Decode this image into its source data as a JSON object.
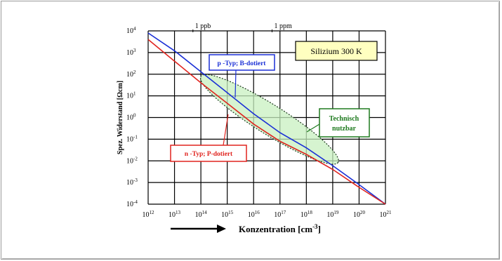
{
  "chart_data": {
    "type": "line",
    "xlabel": "Konzentration [cm",
    "xlabel_sup": "-3",
    "xlabel_tail": "]",
    "ylabel": "Spez. Widerstand [Ωcm]",
    "x_scale": "log",
    "y_scale": "log",
    "xlim": [
      1000000000000.0,
      1e+21
    ],
    "ylim": [
      0.0001,
      10000.0
    ],
    "grid": true,
    "x_ticks": [
      {
        "value": 1000000000000.0,
        "base": "10",
        "exp": "12"
      },
      {
        "value": 10000000000000.0,
        "base": "10",
        "exp": "13"
      },
      {
        "value": 100000000000000.0,
        "base": "10",
        "exp": "14"
      },
      {
        "value": 1000000000000000.0,
        "base": "10",
        "exp": "15"
      },
      {
        "value": 1e+16,
        "base": "10",
        "exp": "16"
      },
      {
        "value": 1e+17,
        "base": "10",
        "exp": "17"
      },
      {
        "value": 1e+18,
        "base": "10",
        "exp": "18"
      },
      {
        "value": 1e+19,
        "base": "10",
        "exp": "19"
      },
      {
        "value": 1e+20,
        "base": "10",
        "exp": "20"
      },
      {
        "value": 1e+21,
        "base": "10",
        "exp": "21"
      }
    ],
    "y_ticks": [
      {
        "value": 10000.0,
        "base": "10",
        "exp": "4"
      },
      {
        "value": 1000.0,
        "base": "10",
        "exp": "3"
      },
      {
        "value": 100.0,
        "base": "10",
        "exp": "2"
      },
      {
        "value": 10.0,
        "base": "10",
        "exp": "1"
      },
      {
        "value": 1.0,
        "base": "10",
        "exp": "0"
      },
      {
        "value": 0.1,
        "base": "10",
        "exp": "-1"
      },
      {
        "value": 0.01,
        "base": "10",
        "exp": "-2"
      },
      {
        "value": 0.001,
        "base": "10",
        "exp": "-3"
      },
      {
        "value": 0.0001,
        "base": "10",
        "exp": "-4"
      }
    ],
    "top_markers": [
      {
        "label": "1 ppb",
        "x": 50000000000000.0
      },
      {
        "label": "1 ppm",
        "x": 5e+16
      }
    ],
    "series": [
      {
        "name": "p -Typ; B-dotiert",
        "color": "#1a2fd6",
        "x": [
          1000000000000.0,
          10000000000000.0,
          100000000000000.0,
          1000000000000000.0,
          1e+16,
          1e+17,
          1e+18,
          1e+19,
          1e+20,
          1e+21
        ],
        "y": [
          8000,
          1200,
          130,
          14,
          1.5,
          0.2,
          0.04,
          0.006,
          0.0008,
          0.0001
        ]
      },
      {
        "name": "n -Typ; P-dotiert",
        "color": "#e0241f",
        "x": [
          1000000000000.0,
          10000000000000.0,
          100000000000000.0,
          1000000000000000.0,
          1e+16,
          1e+17,
          1e+18,
          1e+19,
          1e+20,
          1e+21
        ],
        "y": [
          4000,
          400,
          40,
          4.5,
          0.5,
          0.08,
          0.02,
          0.004,
          0.0006,
          0.0001
        ]
      }
    ],
    "title_box": {
      "label": "Silizium   300 K",
      "fill": "#ffffc0"
    },
    "region": {
      "label_line1": "Technisch",
      "label_line2": "nutzbar",
      "color": "#1e7a1e",
      "fill": "#c8f0c0"
    }
  }
}
